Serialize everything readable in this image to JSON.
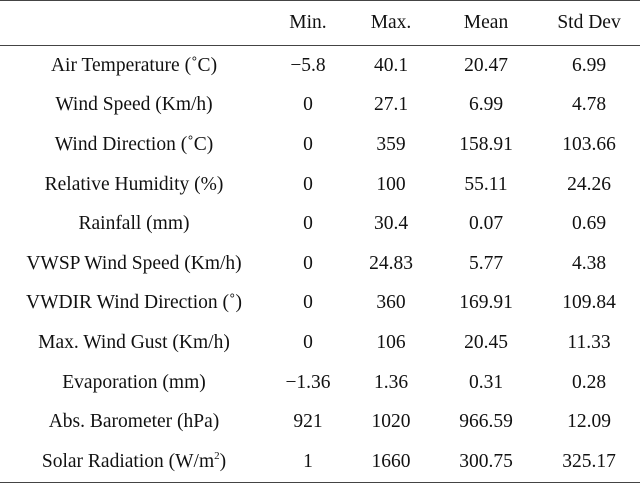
{
  "table": {
    "headers": [
      "",
      "Min.",
      "Max.",
      "Mean",
      "Std Dev"
    ],
    "rows": [
      {
        "param": "Air Temperature (˚C)",
        "min": "−5.8",
        "max": "40.1",
        "mean": "20.47",
        "std": "6.99"
      },
      {
        "param": "Wind Speed (Km/h)",
        "min": "0",
        "max": "27.1",
        "mean": "6.99",
        "std": "4.78"
      },
      {
        "param": "Wind Direction (˚C)",
        "min": "0",
        "max": "359",
        "mean": "158.91",
        "std": "103.66"
      },
      {
        "param": "Relative Humidity (%)",
        "min": "0",
        "max": "100",
        "mean": "55.11",
        "std": "24.26"
      },
      {
        "param": "Rainfall (mm)",
        "min": "0",
        "max": "30.4",
        "mean": "0.07",
        "std": "0.69"
      },
      {
        "param": "VWSP Wind Speed (Km/h)",
        "min": "0",
        "max": "24.83",
        "mean": "5.77",
        "std": "4.38"
      },
      {
        "param": "VWDIR Wind Direction (˚)",
        "min": "0",
        "max": "360",
        "mean": "169.91",
        "std": "109.84"
      },
      {
        "param": "Max. Wind Gust (Km/h)",
        "min": "0",
        "max": "106",
        "mean": "20.45",
        "std": "11.33"
      },
      {
        "param": "Evaporation (mm)",
        "min": "−1.36",
        "max": "1.36",
        "mean": "0.31",
        "std": "0.28"
      },
      {
        "param": "Abs. Barometer (hPa)",
        "min": "921",
        "max": "1020",
        "mean": "966.59",
        "std": "12.09"
      },
      {
        "param_main": "Solar Radiation (W/m",
        "param_sup": "2",
        "param_tail": ")",
        "min": "1",
        "max": "1660",
        "mean": "300.75",
        "std": "325.17"
      }
    ]
  }
}
